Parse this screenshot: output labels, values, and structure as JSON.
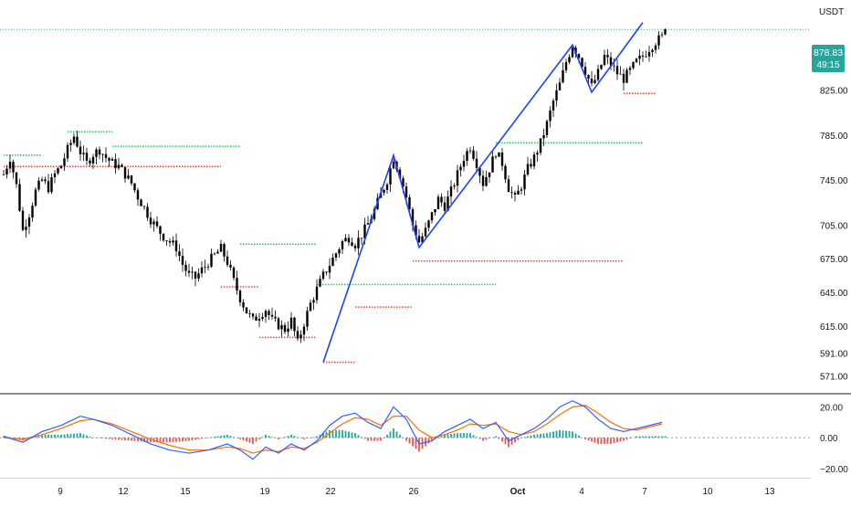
{
  "chart_data": {
    "type": "candlestick",
    "currency": "USDT",
    "price_axis": {
      "ticks": [
        "825.00",
        "785.00",
        "745.00",
        "705.00",
        "675.00",
        "645.00",
        "615.00",
        "591.00",
        "571.00"
      ],
      "ylim": [
        555,
        905
      ]
    },
    "current_price": {
      "value": "878.83",
      "countdown": "49:15",
      "color": "#26a69a"
    },
    "time_axis": {
      "labels": [
        "9",
        "12",
        "15",
        "19",
        "22",
        "26",
        "Oct",
        "4",
        "7",
        "10",
        "13"
      ]
    },
    "candle_colors": {
      "up": "#26a69a",
      "down": "#ef5350",
      "body": "#000000"
    },
    "price_path": [
      [
        0,
        750
      ],
      [
        2,
        765
      ],
      [
        4,
        740
      ],
      [
        6,
        700
      ],
      [
        8,
        715
      ],
      [
        10,
        735
      ],
      [
        12,
        745
      ],
      [
        14,
        738
      ],
      [
        16,
        750
      ],
      [
        18,
        758
      ],
      [
        20,
        772
      ],
      [
        22,
        784
      ],
      [
        24,
        770
      ],
      [
        26,
        760
      ],
      [
        28,
        768
      ],
      [
        30,
        772
      ],
      [
        32,
        765
      ],
      [
        34,
        760
      ],
      [
        36,
        757
      ],
      [
        38,
        750
      ],
      [
        40,
        742
      ],
      [
        42,
        730
      ],
      [
        44,
        720
      ],
      [
        46,
        710
      ],
      [
        48,
        702
      ],
      [
        50,
        695
      ],
      [
        52,
        690
      ],
      [
        54,
        685
      ],
      [
        56,
        670
      ],
      [
        58,
        660
      ],
      [
        60,
        658
      ],
      [
        62,
        665
      ],
      [
        64,
        672
      ],
      [
        66,
        678
      ],
      [
        68,
        684
      ],
      [
        70,
        672
      ],
      [
        72,
        655
      ],
      [
        74,
        640
      ],
      [
        76,
        628
      ],
      [
        78,
        620
      ],
      [
        80,
        625
      ],
      [
        82,
        630
      ],
      [
        84,
        620
      ],
      [
        86,
        616
      ],
      [
        88,
        612
      ],
      [
        90,
        620
      ],
      [
        92,
        600
      ],
      [
        94,
        618
      ],
      [
        96,
        635
      ],
      [
        98,
        648
      ],
      [
        100,
        660
      ],
      [
        102,
        670
      ],
      [
        104,
        680
      ],
      [
        106,
        690
      ],
      [
        108,
        694
      ],
      [
        110,
        688
      ],
      [
        112,
        696
      ],
      [
        114,
        706
      ],
      [
        116,
        718
      ],
      [
        118,
        732
      ],
      [
        120,
        745
      ],
      [
        122,
        765
      ],
      [
        124,
        750
      ],
      [
        126,
        730
      ],
      [
        128,
        705
      ],
      [
        130,
        690
      ],
      [
        132,
        700
      ],
      [
        134,
        714
      ],
      [
        136,
        728
      ],
      [
        138,
        722
      ],
      [
        140,
        735
      ],
      [
        142,
        750
      ],
      [
        144,
        765
      ],
      [
        146,
        775
      ],
      [
        148,
        760
      ],
      [
        150,
        742
      ],
      [
        152,
        755
      ],
      [
        154,
        770
      ],
      [
        156,
        760
      ],
      [
        158,
        738
      ],
      [
        160,
        728
      ],
      [
        162,
        740
      ],
      [
        164,
        755
      ],
      [
        166,
        765
      ],
      [
        168,
        778
      ],
      [
        170,
        795
      ],
      [
        172,
        815
      ],
      [
        174,
        830
      ],
      [
        176,
        850
      ],
      [
        178,
        865
      ],
      [
        180,
        855
      ],
      [
        182,
        842
      ],
      [
        184,
        828
      ],
      [
        186,
        840
      ],
      [
        188,
        855
      ],
      [
        190,
        848
      ],
      [
        192,
        840
      ],
      [
        194,
        835
      ],
      [
        196,
        842
      ],
      [
        198,
        850
      ],
      [
        200,
        855
      ],
      [
        202,
        862
      ],
      [
        204,
        868
      ],
      [
        206,
        872
      ],
      [
        207,
        878.83
      ]
    ],
    "zigzag": [
      [
        100,
        583
      ],
      [
        122,
        767
      ],
      [
        130,
        685
      ],
      [
        178,
        865
      ],
      [
        184,
        823
      ],
      [
        200,
        885
      ]
    ],
    "zigzag_color": "#1e40ff",
    "resistance_levels": [
      {
        "x1": 0,
        "x2": 12,
        "y": 767
      },
      {
        "x1": 20,
        "x2": 34,
        "y": 788
      },
      {
        "x1": 34,
        "x2": 74,
        "y": 775
      },
      {
        "x1": 74,
        "x2": 98,
        "y": 688
      },
      {
        "x1": 98,
        "x2": 154,
        "y": 652
      },
      {
        "x1": 154,
        "x2": 200,
        "y": 778
      }
    ],
    "support_levels": [
      {
        "x1": 0,
        "x2": 68,
        "y": 757
      },
      {
        "x1": 68,
        "x2": 80,
        "y": 650
      },
      {
        "x1": 80,
        "x2": 98,
        "y": 605
      },
      {
        "x1": 100,
        "x2": 110,
        "y": 583
      },
      {
        "x1": 110,
        "x2": 128,
        "y": 632
      },
      {
        "x1": 128,
        "x2": 194,
        "y": 673
      },
      {
        "x1": 194,
        "x2": 204,
        "y": 822
      }
    ],
    "level_colors": {
      "resistance": "#22c55e",
      "support": "#ef4444"
    },
    "oscillator": {
      "ticks": [
        "20.00",
        "0.00",
        "−20.00"
      ],
      "ylim": [
        -26,
        28
      ],
      "macd": [
        [
          0,
          1
        ],
        [
          6,
          -3
        ],
        [
          12,
          4
        ],
        [
          18,
          8
        ],
        [
          24,
          14
        ],
        [
          28,
          12
        ],
        [
          34,
          8
        ],
        [
          40,
          2
        ],
        [
          46,
          -4
        ],
        [
          52,
          -8
        ],
        [
          58,
          -10
        ],
        [
          64,
          -8
        ],
        [
          70,
          -4
        ],
        [
          74,
          -8
        ],
        [
          78,
          -14
        ],
        [
          82,
          -6
        ],
        [
          86,
          -10
        ],
        [
          90,
          -4
        ],
        [
          94,
          -8
        ],
        [
          98,
          -2
        ],
        [
          102,
          8
        ],
        [
          106,
          14
        ],
        [
          110,
          16
        ],
        [
          114,
          10
        ],
        [
          118,
          6
        ],
        [
          122,
          20
        ],
        [
          126,
          12
        ],
        [
          130,
          -4
        ],
        [
          134,
          -2
        ],
        [
          138,
          4
        ],
        [
          142,
          8
        ],
        [
          146,
          12
        ],
        [
          150,
          6
        ],
        [
          154,
          10
        ],
        [
          158,
          -2
        ],
        [
          162,
          2
        ],
        [
          166,
          6
        ],
        [
          170,
          12
        ],
        [
          174,
          20
        ],
        [
          178,
          24
        ],
        [
          182,
          20
        ],
        [
          186,
          12
        ],
        [
          190,
          6
        ],
        [
          194,
          4
        ],
        [
          198,
          6
        ],
        [
          202,
          8
        ],
        [
          206,
          10
        ]
      ],
      "signal": [
        [
          0,
          0
        ],
        [
          6,
          -1
        ],
        [
          12,
          2
        ],
        [
          18,
          6
        ],
        [
          24,
          11
        ],
        [
          28,
          12
        ],
        [
          34,
          9
        ],
        [
          40,
          4
        ],
        [
          46,
          -1
        ],
        [
          52,
          -5
        ],
        [
          58,
          -8
        ],
        [
          64,
          -8
        ],
        [
          70,
          -6
        ],
        [
          74,
          -7
        ],
        [
          78,
          -10
        ],
        [
          82,
          -8
        ],
        [
          86,
          -9
        ],
        [
          90,
          -6
        ],
        [
          94,
          -7
        ],
        [
          98,
          -3
        ],
        [
          102,
          3
        ],
        [
          106,
          9
        ],
        [
          110,
          13
        ],
        [
          114,
          12
        ],
        [
          118,
          8
        ],
        [
          122,
          14
        ],
        [
          126,
          14
        ],
        [
          130,
          5
        ],
        [
          134,
          0
        ],
        [
          138,
          2
        ],
        [
          142,
          5
        ],
        [
          146,
          9
        ],
        [
          150,
          8
        ],
        [
          154,
          9
        ],
        [
          158,
          4
        ],
        [
          162,
          2
        ],
        [
          166,
          4
        ],
        [
          170,
          9
        ],
        [
          174,
          15
        ],
        [
          178,
          20
        ],
        [
          182,
          21
        ],
        [
          186,
          16
        ],
        [
          190,
          10
        ],
        [
          194,
          6
        ],
        [
          198,
          5
        ],
        [
          202,
          7
        ],
        [
          206,
          9
        ]
      ],
      "macd_color": "#2962ff",
      "signal_color": "#ff6d00",
      "hist_pos_color": "#26a69a",
      "hist_neg_color": "#ef5350"
    }
  }
}
